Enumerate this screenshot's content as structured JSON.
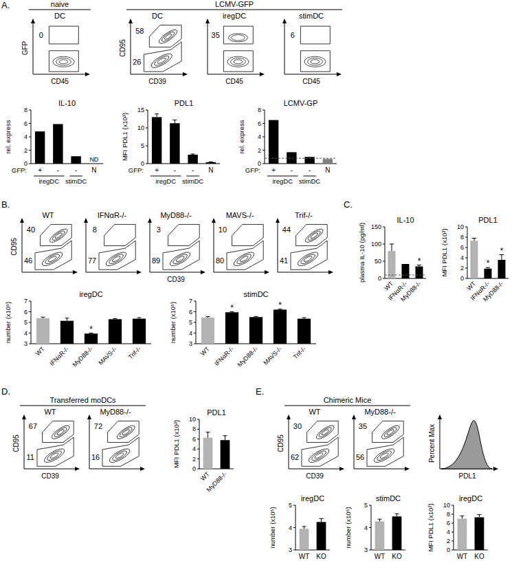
{
  "panel_labels": [
    "A.",
    "B.",
    "C.",
    "D.",
    "E."
  ],
  "headers": [
    "naive",
    "LCMV-GFP",
    "Transferred moDCs",
    "Chimeric Mice"
  ],
  "chart_data": [
    {
      "type": "boxgate",
      "title": "DC",
      "xlabel": "CD45",
      "ylabel": "GFP",
      "gates": [
        0
      ]
    },
    {
      "type": "polygate",
      "title": "DC",
      "xlabel": "CD39",
      "ylabel": "CD95",
      "gates": [
        58,
        26
      ]
    },
    {
      "type": "boxgate",
      "title": "iregDC",
      "xlabel": "CD45",
      "gates": [
        35
      ]
    },
    {
      "type": "boxgate",
      "title": "stimDC",
      "xlabel": "CD45",
      "gates": [
        6
      ]
    },
    {
      "type": "bar",
      "title": "IL-10",
      "ylabel": "rel. express",
      "category_title": "GFP:",
      "categories": [
        "+",
        "-",
        "-",
        "N"
      ],
      "groups": [
        {
          "label": "iregDC",
          "from": 0,
          "to": 1
        },
        {
          "label": "stimDC",
          "from": 2,
          "to": 2
        }
      ],
      "values": [
        4.8,
        5.9,
        1.1,
        null
      ],
      "colors": [
        "#000000",
        "#000000",
        "#000000",
        "#000000"
      ],
      "annotations": [
        {
          "category": 3,
          "text": "ND"
        }
      ],
      "ylim": [
        0,
        8
      ],
      "yticks": [
        0,
        2,
        4,
        6,
        8
      ]
    },
    {
      "type": "bar",
      "title": "PDL1",
      "ylabel": "MFI PDL1 (x10³)",
      "category_title": "GFP:",
      "categories": [
        "+",
        "-",
        "-",
        "N"
      ],
      "groups": [
        {
          "label": "iregDC",
          "from": 0,
          "to": 1
        },
        {
          "label": "stimDC",
          "from": 2,
          "to": 2
        }
      ],
      "values": [
        13,
        11.3,
        2.5,
        0.4
      ],
      "errors": [
        0.9,
        0.9,
        0.2,
        0.1
      ],
      "colors": [
        "#000000",
        "#000000",
        "#000000",
        "#000000"
      ],
      "ylim": [
        0,
        15
      ],
      "yticks": [
        0,
        5,
        10,
        15
      ]
    },
    {
      "type": "bar",
      "title": "LCMV-GP",
      "ylabel": "rel. express",
      "category_title": "GFP:",
      "categories": [
        "+",
        "-",
        "-",
        "N"
      ],
      "groups": [
        {
          "label": "iregDC",
          "from": 0,
          "to": 1
        },
        {
          "label": "stimDC",
          "from": 2,
          "to": 2
        }
      ],
      "values": [
        6.5,
        1.7,
        1.0,
        0.7
      ],
      "colors": [
        "#000000",
        "#000000",
        "#000000",
        "#808080"
      ],
      "baseline": 0.8,
      "ylim": [
        0,
        8
      ],
      "yticks": [
        0,
        2,
        4,
        6,
        8
      ]
    },
    {
      "type": "polygate",
      "title": "WT",
      "ylabel": "CD95",
      "gates": [
        40,
        46
      ]
    },
    {
      "type": "polygate",
      "title": "IFNαR-/-",
      "gates": [
        8,
        77
      ]
    },
    {
      "type": "polygate",
      "title": "MyD88-/-",
      "xlabel": "CD39",
      "gates": [
        3,
        89
      ]
    },
    {
      "type": "polygate",
      "title": "MAVS-/-",
      "gates": [
        10,
        80
      ]
    },
    {
      "type": "polygate",
      "title": "Trif-/-",
      "gates": [
        44,
        41
      ]
    },
    {
      "type": "bar",
      "title": "iregDC",
      "ylabel": "number (x10⁵)",
      "categories": [
        "WT",
        "IFNαR-/-",
        "MyD88-/-",
        "MAVS-/-",
        "Trif-/-"
      ],
      "values": [
        5.4,
        5.15,
        3.95,
        5.3,
        5.35
      ],
      "errors": [
        0.1,
        0.25,
        0.05,
        0.05,
        0.1
      ],
      "significance": [
        null,
        null,
        "*",
        null,
        null
      ],
      "colors": [
        "#b3b3b3",
        "#000000",
        "#000000",
        "#000000",
        "#000000"
      ],
      "ylim": [
        3,
        7
      ],
      "yticks": [
        3,
        4,
        5,
        6,
        7
      ]
    },
    {
      "type": "bar",
      "title": "stimDC",
      "ylabel": "number (x10⁵)",
      "categories": [
        "WT",
        "IFNαR-/-",
        "MyD88-/-",
        "MAVS-/-",
        "Trif-/-"
      ],
      "values": [
        5.45,
        5.95,
        5.5,
        6.2,
        5.35
      ],
      "errors": [
        0.1,
        0.05,
        0.05,
        0.05,
        0.1
      ],
      "significance": [
        null,
        "*",
        null,
        "*",
        null
      ],
      "colors": [
        "#b3b3b3",
        "#000000",
        "#000000",
        "#000000",
        "#000000"
      ],
      "ylim": [
        3,
        7
      ],
      "yticks": [
        3,
        4,
        5,
        6,
        7
      ]
    },
    {
      "type": "bar",
      "title": "IL-10",
      "ylabel": "plasma IL-10 (pg/ml)",
      "categories": [
        "WT",
        "IFNαR-/-",
        "MyD88-/-"
      ],
      "values": [
        80,
        42,
        35
      ],
      "errors": [
        20,
        null,
        4
      ],
      "significance": [
        null,
        null,
        "*"
      ],
      "colors": [
        "#b3b3b3",
        "#000000",
        "#000000"
      ],
      "baseline": 10,
      "ylim": [
        0,
        150
      ],
      "yticks": [
        0,
        50,
        100,
        150
      ]
    },
    {
      "type": "bar",
      "title": "PDL1",
      "ylabel": "MFI PDL1 (x10³)",
      "categories": [
        "WT",
        "IFNαR-/-",
        "MyD88-/-"
      ],
      "values": [
        7.3,
        1.9,
        3.6
      ],
      "errors": [
        0.5,
        0.2,
        1.0
      ],
      "significance": [
        null,
        "*",
        "*"
      ],
      "colors": [
        "#b3b3b3",
        "#000000",
        "#000000"
      ],
      "ylim": [
        0,
        10
      ],
      "yticks": [
        0,
        2,
        4,
        6,
        8,
        10
      ]
    },
    {
      "type": "polygate",
      "title": "WT",
      "xlabel": "CD39",
      "ylabel": "CD95",
      "gates": [
        67,
        11
      ]
    },
    {
      "type": "polygate",
      "title": "MyD88-/-",
      "gates": [
        72,
        16
      ]
    },
    {
      "type": "bar",
      "title": "PDL1",
      "ylabel": "MFI PDL1 (x10³)",
      "categories": [
        "WT",
        "MyD88-/-"
      ],
      "values": [
        6.3,
        5.8
      ],
      "errors": [
        1.1,
        0.9
      ],
      "colors": [
        "#b3b3b3",
        "#000000"
      ],
      "ylim": [
        0,
        10
      ],
      "yticks": [
        0,
        2,
        4,
        6,
        8,
        10
      ]
    },
    {
      "type": "polygate",
      "title": "WT",
      "xlabel": "CD39",
      "ylabel": "CD95",
      "gates": [
        30,
        62
      ]
    },
    {
      "type": "polygate",
      "title": "MyD88-/-",
      "gates": [
        35,
        56
      ]
    },
    {
      "type": "overlay",
      "xlabel": "PDL1",
      "ylabel": "Percent Max"
    },
    {
      "type": "bar",
      "title": "iregDC",
      "ylabel": "number (x10⁵)",
      "categories": [
        "WT",
        "KO"
      ],
      "values": [
        3.95,
        4.25
      ],
      "errors": [
        0.1,
        0.15
      ],
      "colors": [
        "#b3b3b3",
        "#000000"
      ],
      "ylim": [
        3,
        5
      ],
      "yticks": [
        3,
        4,
        5
      ]
    },
    {
      "type": "bar",
      "title": "stimDC",
      "ylabel": "number (x10⁵)",
      "categories": [
        "WT",
        "KO"
      ],
      "values": [
        4.28,
        4.5
      ],
      "errors": [
        0.1,
        0.12
      ],
      "colors": [
        "#b3b3b3",
        "#000000"
      ],
      "ylim": [
        3,
        5
      ],
      "yticks": [
        3,
        4,
        5
      ]
    },
    {
      "type": "bar",
      "title": "iregDC",
      "ylabel": "MFI PDL1 (x10³)",
      "categories": [
        "WT",
        "KO"
      ],
      "values": [
        7.0,
        7.3
      ],
      "errors": [
        0.6,
        0.6
      ],
      "colors": [
        "#b3b3b3",
        "#000000"
      ],
      "ylim": [
        0,
        10
      ],
      "yticks": [
        0,
        2,
        4,
        6,
        8,
        10
      ]
    }
  ]
}
